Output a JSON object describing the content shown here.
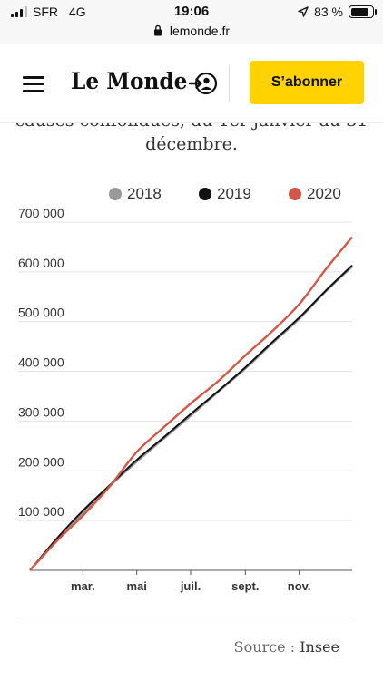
{
  "status_bar": {
    "carrier": "SFR",
    "network": "4G",
    "time": "19:06",
    "battery": "83 %",
    "battery_level": 0.83
  },
  "browser": {
    "url": "lemonde.fr"
  },
  "header": {
    "logo": "Le Monde",
    "subscribe_label": "S’abonner",
    "accent_color": "#ffd200"
  },
  "intro": {
    "line1_partial": "causes confondues, du 1er janvier au 31",
    "line2": "décembre."
  },
  "source": {
    "prefix": "Source : ",
    "link": "Insee"
  },
  "chart_data": {
    "type": "line",
    "x_ticks": [
      "mar.",
      "mai",
      "juil.",
      "sept.",
      "nov."
    ],
    "y_ticks": [
      "100 000",
      "200 000",
      "300 000",
      "400 000",
      "500 000",
      "600 000",
      "700 000"
    ],
    "ylim": [
      0,
      700000
    ],
    "grid": true,
    "legend_position": "top",
    "series": [
      {
        "name": "2018",
        "color": "#999999",
        "x": [
          "01-01",
          "02-01",
          "03-01",
          "04-01",
          "05-01",
          "06-01",
          "07-01",
          "08-01",
          "09-01",
          "10-01",
          "11-01",
          "12-01",
          "12-31"
        ],
        "values": [
          0,
          60000,
          115000,
          170000,
          218000,
          265000,
          310000,
          358000,
          405000,
          455000,
          505000,
          560000,
          610000
        ]
      },
      {
        "name": "2019",
        "color": "#111111",
        "x": [
          "01-01",
          "02-01",
          "03-01",
          "04-01",
          "05-01",
          "06-01",
          "07-01",
          "08-01",
          "09-01",
          "10-01",
          "11-01",
          "12-01",
          "12-31"
        ],
        "values": [
          0,
          65000,
          120000,
          172000,
          222000,
          268000,
          314000,
          360000,
          408000,
          458000,
          508000,
          562000,
          613000
        ]
      },
      {
        "name": "2020",
        "color": "#d1574a",
        "x": [
          "01-01",
          "02-01",
          "03-01",
          "04-01",
          "05-01",
          "06-01",
          "07-01",
          "08-01",
          "09-01",
          "10-01",
          "11-01",
          "12-01",
          "12-31"
        ],
        "values": [
          0,
          60000,
          110000,
          170000,
          238000,
          288000,
          335000,
          380000,
          432000,
          480000,
          535000,
          605000,
          670000
        ]
      }
    ]
  }
}
